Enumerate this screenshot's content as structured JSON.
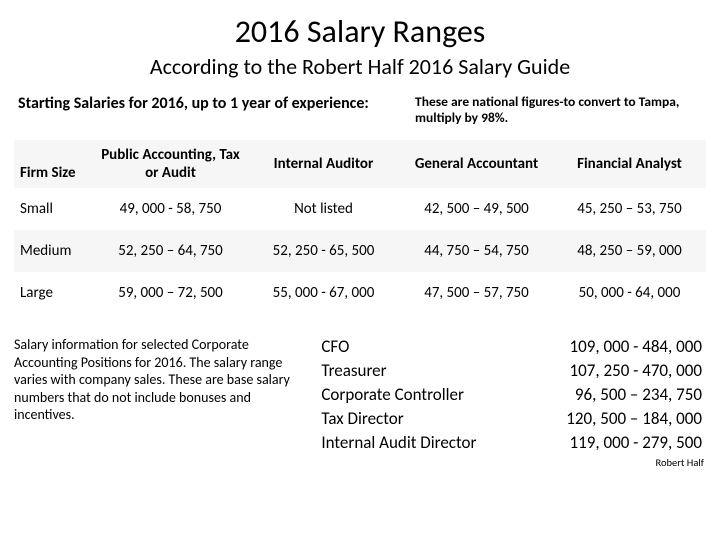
{
  "title": "2016 Salary Ranges",
  "subtitle": "According to the Robert Half 2016 Salary Guide",
  "intro_left": "Starting Salaries for 2016, up to 1 year of experience:",
  "intro_right": "These are national figures-to convert to Tampa, multiply by 98%.",
  "main_table": {
    "columns": [
      "Firm Size",
      "Public Accounting, Tax or Audit",
      "Internal Auditor",
      "General Accountant",
      "Financial Analyst"
    ],
    "rows": [
      [
        "Small",
        "49, 000 - 58, 750",
        "Not listed",
        "42, 500 – 49, 500",
        "45, 250 – 53, 750"
      ],
      [
        "Medium",
        "52, 250 – 64, 750",
        "52, 250 - 65, 500",
        "44, 750 – 54, 750",
        "48, 250 – 59, 000"
      ],
      [
        "Large",
        "59, 000 – 72, 500",
        "55, 000 - 67, 000",
        "47, 500 – 57, 750",
        "50, 000 - 64, 000"
      ]
    ]
  },
  "bottom_text": "Salary information for selected Corporate Accounting Positions for 2016.  The salary range varies with company sales.  These are base salary numbers that do not include bonuses and incentives.",
  "corp_table": {
    "rows": [
      [
        "CFO",
        "109, 000 - 484, 000"
      ],
      [
        "Treasurer",
        "107, 250 - 470, 000"
      ],
      [
        "Corporate Controller",
        "96, 500 – 234, 750"
      ],
      [
        "Tax Director",
        "120, 500 – 184, 000"
      ],
      [
        "Internal Audit Director",
        "119, 000 - 279, 500"
      ]
    ]
  },
  "footer": "Robert Half"
}
